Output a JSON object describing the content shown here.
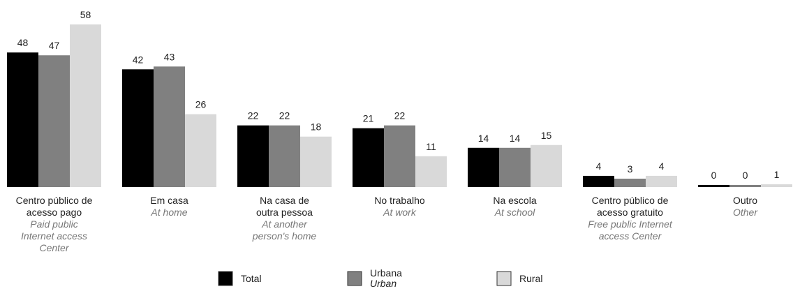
{
  "chart_data": {
    "type": "bar",
    "categories": [
      "Centro público de\nacesso pago",
      "Em casa",
      "Na casa de\noutra pessoa",
      "No trabalho",
      "Na escola",
      "Centro público de\nacesso gratuito",
      "Outro"
    ],
    "category_translations": [
      "Paid public\nInternet access\nCenter",
      "At home",
      "At another\nperson's home",
      "At work",
      "At school",
      "Free public Internet\naccess Center",
      "Other"
    ],
    "series": [
      {
        "name": "Total",
        "color": "#000000",
        "values": [
          48,
          42,
          22,
          21,
          14,
          4,
          0
        ]
      },
      {
        "name": "Urbana",
        "translation": "Urban",
        "color": "#808080",
        "values": [
          47,
          43,
          22,
          22,
          14,
          3,
          0
        ]
      },
      {
        "name": "Rural",
        "color": "#d9d9d9",
        "values": [
          58,
          26,
          18,
          11,
          15,
          4,
          1
        ]
      }
    ],
    "ylim": [
      0,
      60
    ]
  }
}
